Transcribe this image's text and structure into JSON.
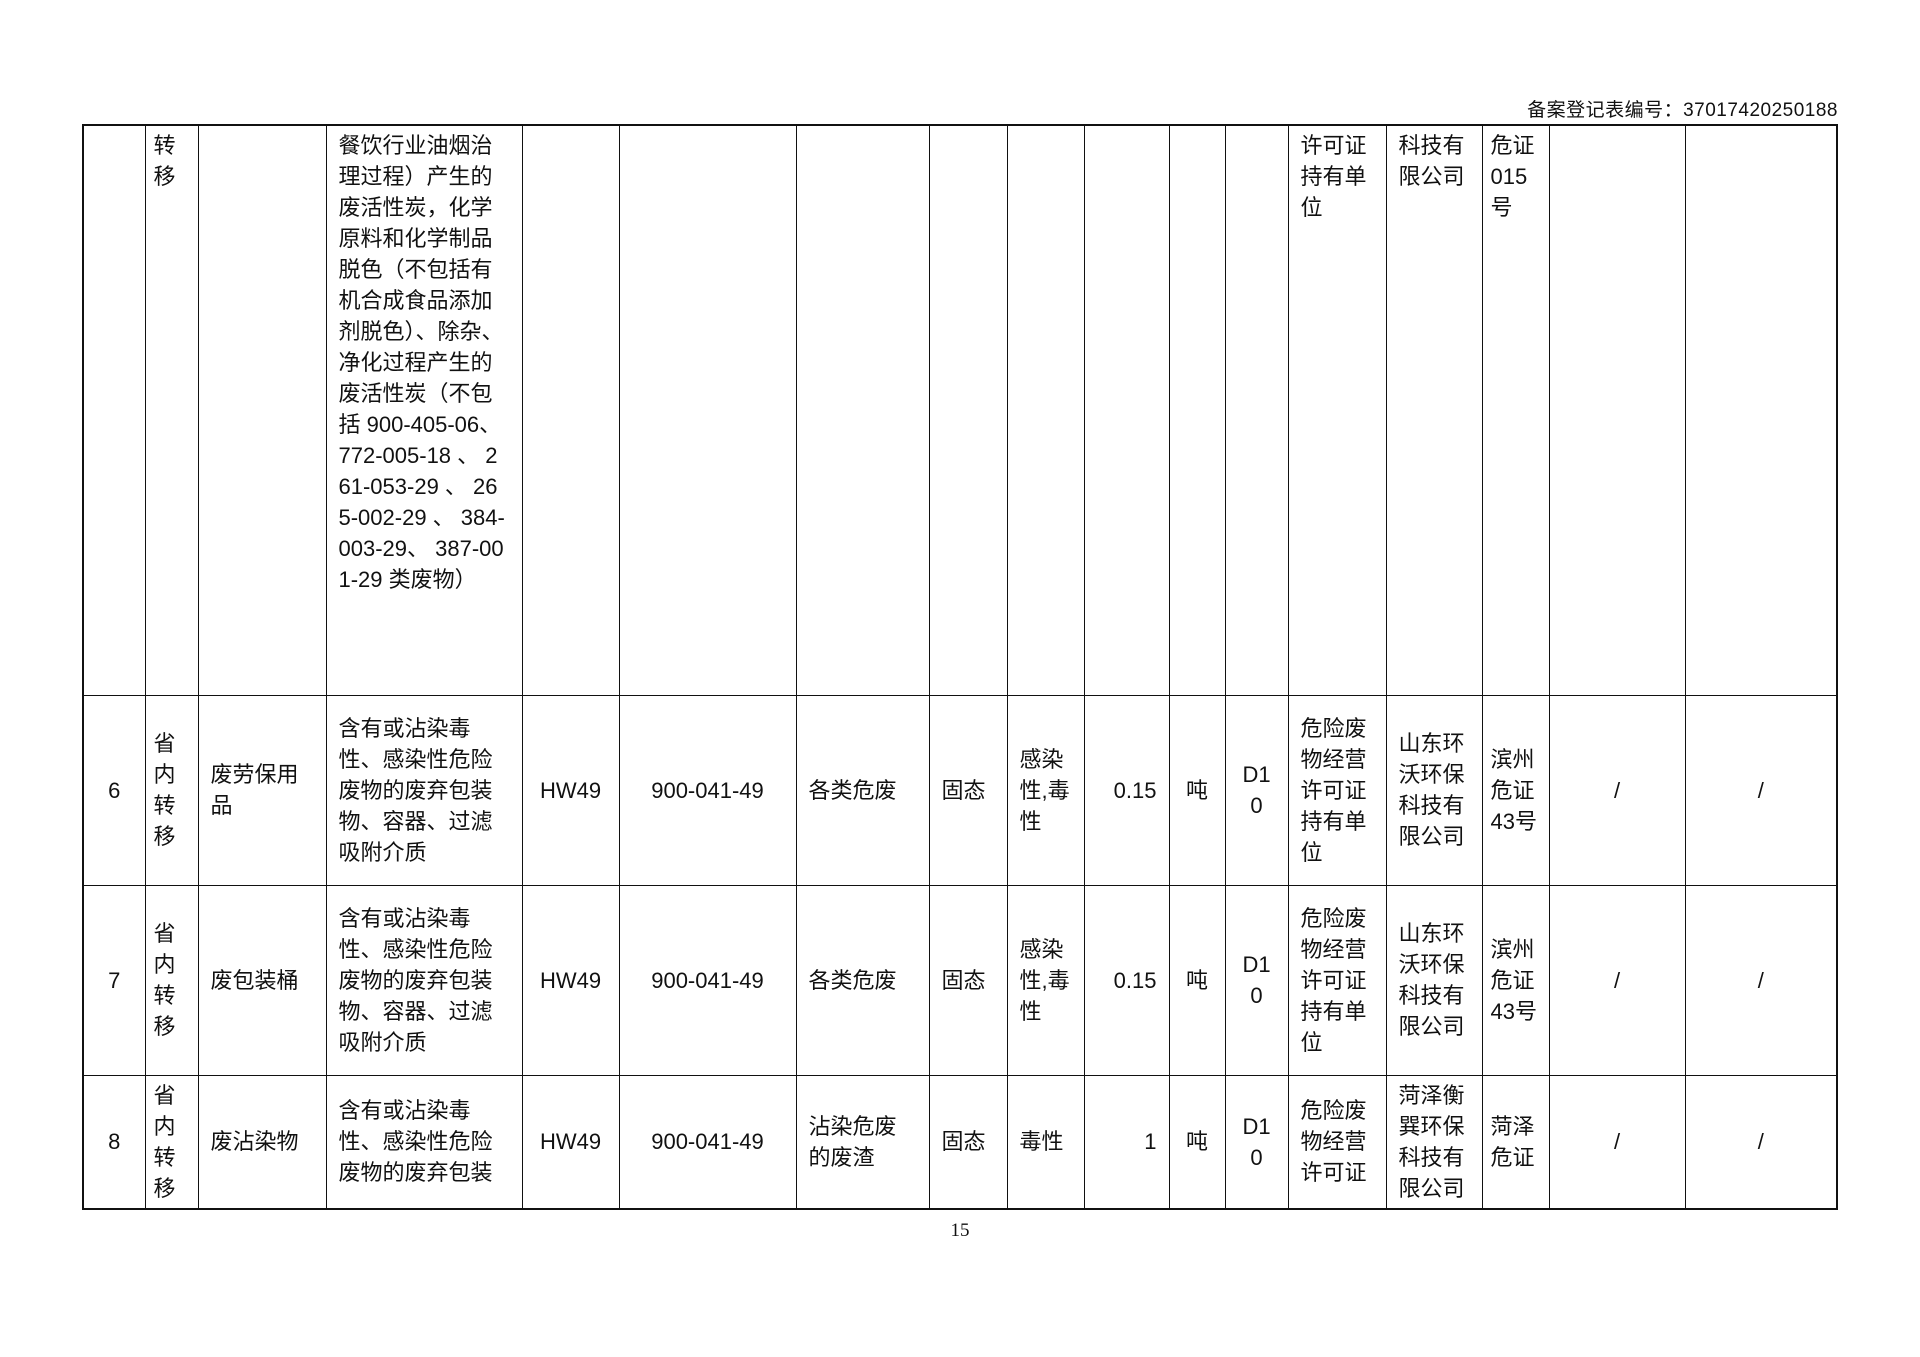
{
  "header": {
    "record_code": "备案登记表编号：37017420250188"
  },
  "rows": [
    {
      "no": "",
      "transfer": "转移",
      "name": "",
      "description": "餐饮行业油烟治理过程）产生的废活性炭，化学原料和化学制品脱色（不包括有机合成食品添加剂脱色）、除杂、净化过程产生的废活性炭（不包括 900-405-06、 772-005-18 、 261-053-29 、 265-002-29 、 384-003-29、 387-001-29 类废物）",
      "category": "",
      "code": "",
      "industry": "",
      "form": "",
      "hazard": "",
      "amount": "",
      "unit": "",
      "method": "",
      "license_type": "许可证持有单位",
      "receiver": "科技有限公司",
      "license_no": "危证015号",
      "col15": "",
      "col16": ""
    },
    {
      "no": "6",
      "transfer": "省内转移",
      "name": "废劳保用品",
      "description": "含有或沾染毒性、感染性危险废物的废弃包装物、容器、过滤吸附介质",
      "category": "HW49",
      "code": "900-041-49",
      "industry": "各类危废",
      "form": "固态",
      "hazard": "感染性,毒性",
      "amount": "0.15",
      "unit": "吨",
      "method": "D10",
      "license_type": "危险废物经营许可证持有单位",
      "receiver": "山东环沃环保科技有限公司",
      "license_no": "滨州危证43号",
      "col15": "/",
      "col16": "/"
    },
    {
      "no": "7",
      "transfer": "省内转移",
      "name": "废包装桶",
      "description": "含有或沾染毒性、感染性危险废物的废弃包装物、容器、过滤吸附介质",
      "category": "HW49",
      "code": "900-041-49",
      "industry": "各类危废",
      "form": "固态",
      "hazard": "感染性,毒性",
      "amount": "0.15",
      "unit": "吨",
      "method": "D10",
      "license_type": "危险废物经营许可证持有单位",
      "receiver": "山东环沃环保科技有限公司",
      "license_no": "滨州危证43号",
      "col15": "/",
      "col16": "/"
    },
    {
      "no": "8",
      "transfer": "省内转移",
      "name": "废沾染物",
      "description": "含有或沾染毒性、感染性危险废物的废弃包装",
      "category": "HW49",
      "code": "900-041-49",
      "industry": "沾染危废的废渣",
      "form": "固态",
      "hazard": "毒性",
      "amount": "1",
      "unit": "吨",
      "method": "D10",
      "license_type": "危险废物经营许可证",
      "receiver": "菏泽衡巽环保科技有限公司",
      "license_no": "菏泽危证",
      "col15": "/",
      "col16": "/"
    }
  ],
  "footer": {
    "page_number": "15"
  }
}
